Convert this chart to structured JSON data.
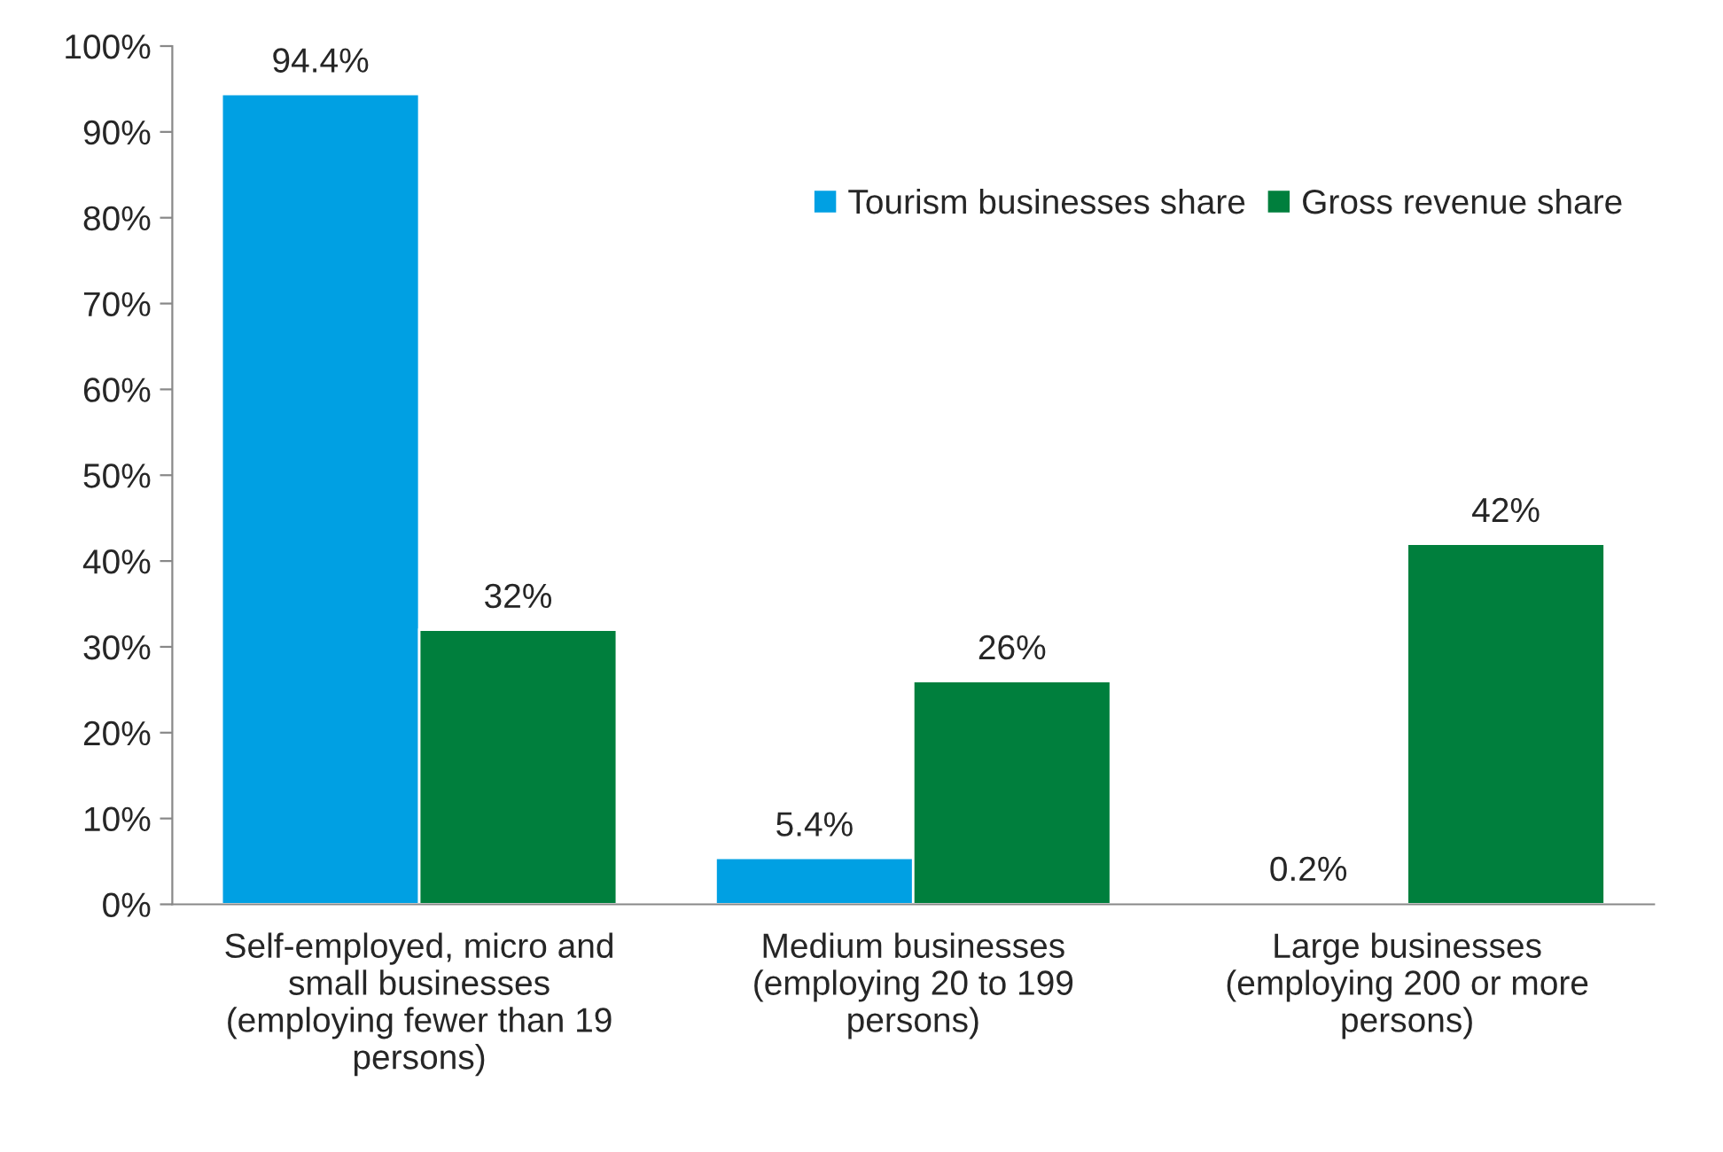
{
  "chart_data": {
    "type": "bar",
    "categories": [
      "Self-employed, micro and\nsmall businesses\n(employing fewer than 19\npersons)",
      "Medium businesses\n(employing 20 to 199\npersons)",
      "Large businesses\n(employing 200 or more\npersons)"
    ],
    "series": [
      {
        "name": "Tourism businesses share",
        "color": "#00a0e3",
        "values": [
          94.4,
          5.4,
          0.2
        ],
        "value_labels": [
          "94.4%",
          "5.4%",
          "0.2%"
        ]
      },
      {
        "name": "Gross revenue share",
        "color": "#007f3d",
        "values": [
          32,
          26,
          42
        ],
        "value_labels": [
          "32%",
          "26%",
          "42%"
        ]
      }
    ],
    "ylim": [
      0,
      100
    ],
    "yticks": [
      {
        "value": 0,
        "label": "0%"
      },
      {
        "value": 10,
        "label": "10%"
      },
      {
        "value": 20,
        "label": "20%"
      },
      {
        "value": 30,
        "label": "30%"
      },
      {
        "value": 40,
        "label": "40%"
      },
      {
        "value": 50,
        "label": "50%"
      },
      {
        "value": 60,
        "label": "60%"
      },
      {
        "value": 70,
        "label": "70%"
      },
      {
        "value": 80,
        "label": "80%"
      },
      {
        "value": 90,
        "label": "90%"
      },
      {
        "value": 100,
        "label": "100%"
      }
    ],
    "grid": false,
    "legend": "top right"
  }
}
